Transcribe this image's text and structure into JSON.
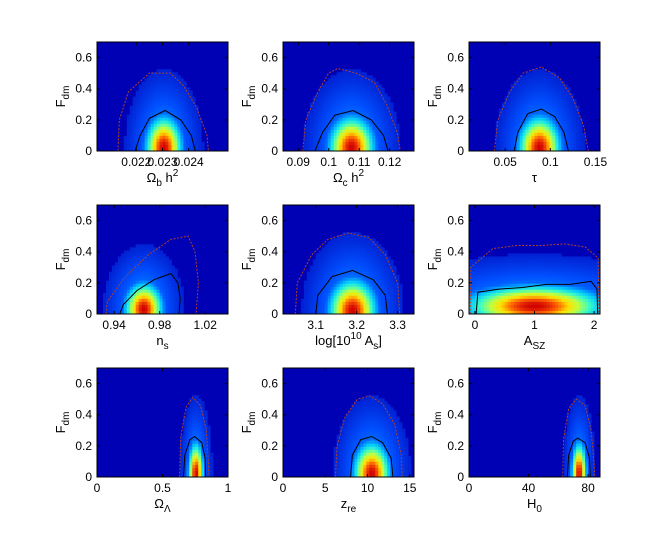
{
  "figure": {
    "shared_ylabel": {
      "main": "F",
      "sub": "dm"
    },
    "background_color": "#0000b4",
    "density_colormap": [
      "#0000b4",
      "#0050ff",
      "#00c8ff",
      "#40ffc0",
      "#c0ff40",
      "#ffe000",
      "#ff6000",
      "#d00000"
    ],
    "contour_colors": {
      "inner_68": "#000000",
      "outer_95": "#b04030"
    }
  },
  "chart_data": [
    {
      "type": "heatmap",
      "panel": "omega-b-h2",
      "xlabel": {
        "parts": [
          [
            "Ω",
            ""
          ],
          [
            "b",
            "sub"
          ],
          [
            " h",
            ""
          ],
          [
            "2",
            "sup"
          ]
        ]
      },
      "xlim": [
        0.0205,
        0.0255
      ],
      "xticks": [
        0.022,
        0.023,
        0.024
      ],
      "xticklabels": [
        "0.022",
        "0.023",
        "0.024"
      ],
      "ylim": [
        0,
        0.7
      ],
      "yticks": [
        0,
        0.2,
        0.4,
        0.6
      ],
      "yticklabels": [
        "0",
        "0.2",
        "0.4",
        "0.6"
      ],
      "peak": {
        "x": 0.02305,
        "y": 0.02,
        "sx": 0.00042,
        "sy": 0.12
      },
      "contour_68": [
        [
          0.02195,
          0
        ],
        [
          0.02215,
          0.1
        ],
        [
          0.0225,
          0.21
        ],
        [
          0.0231,
          0.26
        ],
        [
          0.0237,
          0.2
        ],
        [
          0.0241,
          0.1
        ],
        [
          0.02425,
          0
        ]
      ],
      "contour_95": [
        [
          0.0213,
          0
        ],
        [
          0.02135,
          0.2
        ],
        [
          0.0217,
          0.38
        ],
        [
          0.0225,
          0.5
        ],
        [
          0.0233,
          0.5
        ],
        [
          0.0238,
          0.42
        ],
        [
          0.0243,
          0.28
        ],
        [
          0.0247,
          0.1
        ],
        [
          0.02475,
          0
        ]
      ]
    },
    {
      "type": "heatmap",
      "panel": "omega-c-h2",
      "xlabel": {
        "parts": [
          [
            "Ω",
            ""
          ],
          [
            "c",
            "sub"
          ],
          [
            " h",
            ""
          ],
          [
            "2",
            "sup"
          ]
        ]
      },
      "xlim": [
        0.085,
        0.128
      ],
      "xticks": [
        0.09,
        0.1,
        0.11,
        0.12
      ],
      "xticklabels": [
        "0.09",
        "0.1",
        "0.11",
        "0.12"
      ],
      "ylim": [
        0,
        0.7
      ],
      "yticks": [
        0,
        0.2,
        0.4,
        0.6
      ],
      "yticklabels": [
        "0",
        "0.2",
        "0.4",
        "0.6"
      ],
      "peak": {
        "x": 0.1075,
        "y": 0.02,
        "sx": 0.0045,
        "sy": 0.12
      },
      "contour_68": [
        [
          0.0955,
          0
        ],
        [
          0.098,
          0.12
        ],
        [
          0.102,
          0.23
        ],
        [
          0.108,
          0.26
        ],
        [
          0.114,
          0.2
        ],
        [
          0.118,
          0.1
        ],
        [
          0.1195,
          0
        ]
      ],
      "contour_95": [
        [
          0.0915,
          0
        ],
        [
          0.0925,
          0.2
        ],
        [
          0.0965,
          0.38
        ],
        [
          0.1,
          0.5
        ],
        [
          0.103,
          0.53
        ],
        [
          0.109,
          0.5
        ],
        [
          0.115,
          0.44
        ],
        [
          0.119,
          0.3
        ],
        [
          0.1225,
          0.12
        ],
        [
          0.1235,
          0
        ]
      ]
    },
    {
      "type": "heatmap",
      "panel": "tau",
      "xlabel": {
        "parts": [
          [
            "τ",
            ""
          ]
        ]
      },
      "xlim": [
        0.01,
        0.155
      ],
      "xticks": [
        0.05,
        0.1,
        0.15
      ],
      "xticklabels": [
        "0.05",
        "0.1",
        "0.15"
      ],
      "ylim": [
        0,
        0.7
      ],
      "yticks": [
        0,
        0.2,
        0.4,
        0.6
      ],
      "yticklabels": [
        "0",
        "0.2",
        "0.4",
        "0.6"
      ],
      "peak": {
        "x": 0.088,
        "y": 0.02,
        "sx": 0.014,
        "sy": 0.12
      },
      "contour_68": [
        [
          0.06,
          0
        ],
        [
          0.064,
          0.12
        ],
        [
          0.075,
          0.24
        ],
        [
          0.09,
          0.27
        ],
        [
          0.105,
          0.22
        ],
        [
          0.115,
          0.12
        ],
        [
          0.12,
          0
        ]
      ],
      "contour_95": [
        [
          0.038,
          0
        ],
        [
          0.042,
          0.2
        ],
        [
          0.055,
          0.38
        ],
        [
          0.07,
          0.5
        ],
        [
          0.09,
          0.54
        ],
        [
          0.11,
          0.47
        ],
        [
          0.125,
          0.34
        ],
        [
          0.137,
          0.16
        ],
        [
          0.142,
          0
        ]
      ]
    },
    {
      "type": "heatmap",
      "panel": "n-s",
      "xlabel": {
        "parts": [
          [
            "n",
            ""
          ],
          [
            "s",
            "sub"
          ]
        ]
      },
      "xlim": [
        0.925,
        1.04
      ],
      "xticks": [
        0.94,
        0.98,
        1.02
      ],
      "xticklabels": [
        "0.94",
        "0.98",
        "1.02"
      ],
      "ylim": [
        0,
        0.7
      ],
      "yticks": [
        0,
        0.2,
        0.4,
        0.6
      ],
      "yticklabels": [
        "0",
        "0.2",
        "0.4",
        "0.6"
      ],
      "peak": {
        "x": 0.966,
        "y": 0.03,
        "sx": 0.01,
        "sy": 0.1
      },
      "contour_68": [
        [
          0.945,
          0
        ],
        [
          0.948,
          0.06
        ],
        [
          0.96,
          0.15
        ],
        [
          0.975,
          0.22
        ],
        [
          0.99,
          0.26
        ],
        [
          0.996,
          0.2
        ],
        [
          0.998,
          0.1
        ],
        [
          0.997,
          0
        ]
      ],
      "contour_95": [
        [
          0.933,
          0
        ],
        [
          0.934,
          0.08
        ],
        [
          0.95,
          0.24
        ],
        [
          0.97,
          0.38
        ],
        [
          0.99,
          0.48
        ],
        [
          1.005,
          0.5
        ],
        [
          1.011,
          0.4
        ],
        [
          1.014,
          0.2
        ],
        [
          1.012,
          0
        ]
      ]
    },
    {
      "type": "heatmap",
      "panel": "log-as",
      "xlabel": {
        "parts": [
          [
            "log[10",
            ""
          ],
          [
            "10",
            "sup"
          ],
          [
            " A",
            ""
          ],
          [
            "s",
            "sub"
          ],
          [
            "]",
            ""
          ]
        ]
      },
      "xlim": [
        3.02,
        3.34
      ],
      "xticks": [
        3.1,
        3.2,
        3.3
      ],
      "xticklabels": [
        "3.1",
        "3.2",
        "3.3"
      ],
      "ylim": [
        0,
        0.7
      ],
      "yticks": [
        0,
        0.2,
        0.4,
        0.6
      ],
      "yticklabels": [
        "0",
        "0.2",
        "0.4",
        "0.6"
      ],
      "peak": {
        "x": 3.19,
        "y": 0.02,
        "sx": 0.035,
        "sy": 0.12
      },
      "contour_68": [
        [
          3.1,
          0
        ],
        [
          3.105,
          0.12
        ],
        [
          3.14,
          0.24
        ],
        [
          3.19,
          0.28
        ],
        [
          3.24,
          0.22
        ],
        [
          3.27,
          0.12
        ],
        [
          3.275,
          0
        ]
      ],
      "contour_95": [
        [
          3.05,
          0
        ],
        [
          3.055,
          0.2
        ],
        [
          3.09,
          0.38
        ],
        [
          3.13,
          0.48
        ],
        [
          3.18,
          0.52
        ],
        [
          3.23,
          0.49
        ],
        [
          3.27,
          0.38
        ],
        [
          3.3,
          0.2
        ],
        [
          3.305,
          0
        ]
      ]
    },
    {
      "type": "heatmap",
      "panel": "a-sz",
      "xlabel": {
        "parts": [
          [
            "A",
            ""
          ],
          [
            "SZ",
            "sub"
          ]
        ]
      },
      "xlim": [
        -0.1,
        2.1
      ],
      "xticks": [
        0,
        1,
        2
      ],
      "xticklabels": [
        "0",
        "1",
        "2"
      ],
      "ylim": [
        0,
        0.7
      ],
      "yticks": [
        0,
        0.2,
        0.4,
        0.6
      ],
      "yticklabels": [
        "0",
        "0.2",
        "0.4",
        "0.6"
      ],
      "peak": {
        "x": 1.0,
        "y": 0.05,
        "sx": 0.7,
        "sy": 0.08
      },
      "contour_68": [
        [
          0.02,
          0
        ],
        [
          0.05,
          0.14
        ],
        [
          0.4,
          0.16
        ],
        [
          0.8,
          0.17
        ],
        [
          1.2,
          0.19
        ],
        [
          1.6,
          0.19
        ],
        [
          1.95,
          0.21
        ],
        [
          2.05,
          0.16
        ],
        [
          2.06,
          0
        ]
      ],
      "contour_95": [
        [
          -0.08,
          0
        ],
        [
          -0.07,
          0.3
        ],
        [
          0.3,
          0.42
        ],
        [
          0.7,
          0.44
        ],
        [
          1.1,
          0.44
        ],
        [
          1.5,
          0.45
        ],
        [
          1.85,
          0.43
        ],
        [
          2.07,
          0.36
        ],
        [
          2.08,
          0
        ]
      ]
    },
    {
      "type": "heatmap",
      "panel": "omega-lambda",
      "xlabel": {
        "parts": [
          [
            "Ω",
            ""
          ],
          [
            "Λ",
            "sub"
          ]
        ]
      },
      "xlim": [
        0,
        1
      ],
      "xticks": [
        0,
        0.5,
        1
      ],
      "xticklabels": [
        "0",
        "0.5",
        "1"
      ],
      "ylim": [
        0,
        0.7
      ],
      "yticks": [
        0,
        0.2,
        0.4,
        0.6
      ],
      "yticklabels": [
        "0",
        "0.2",
        "0.4",
        "0.6"
      ],
      "peak": {
        "x": 0.755,
        "y": 0.02,
        "sx": 0.035,
        "sy": 0.12
      },
      "contour_68": [
        [
          0.66,
          0
        ],
        [
          0.67,
          0.14
        ],
        [
          0.71,
          0.24
        ],
        [
          0.745,
          0.26
        ],
        [
          0.8,
          0.22
        ],
        [
          0.825,
          0.12
        ],
        [
          0.83,
          0
        ]
      ],
      "contour_95": [
        [
          0.63,
          0
        ],
        [
          0.64,
          0.26
        ],
        [
          0.68,
          0.45
        ],
        [
          0.73,
          0.51
        ],
        [
          0.79,
          0.46
        ],
        [
          0.835,
          0.3
        ],
        [
          0.85,
          0.1
        ],
        [
          0.855,
          0
        ]
      ]
    },
    {
      "type": "heatmap",
      "panel": "z-re",
      "xlabel": {
        "parts": [
          [
            "z",
            ""
          ],
          [
            "re",
            "sub"
          ]
        ]
      },
      "xlim": [
        0,
        15.5
      ],
      "xticks": [
        0,
        5,
        10,
        15
      ],
      "xticklabels": [
        "0",
        "5",
        "10",
        "15"
      ],
      "ylim": [
        0,
        0.7
      ],
      "yticks": [
        0,
        0.2,
        0.4,
        0.6
      ],
      "yticklabels": [
        "0",
        "0.2",
        "0.4",
        "0.6"
      ],
      "peak": {
        "x": 10.5,
        "y": 0.02,
        "sx": 1.3,
        "sy": 0.12
      },
      "contour_68": [
        [
          8.0,
          0
        ],
        [
          8.2,
          0.14
        ],
        [
          9.2,
          0.24
        ],
        [
          10.5,
          0.26
        ],
        [
          11.8,
          0.22
        ],
        [
          12.8,
          0.12
        ],
        [
          13.0,
          0
        ]
      ],
      "contour_95": [
        [
          6.2,
          0
        ],
        [
          6.4,
          0.2
        ],
        [
          7.3,
          0.38
        ],
        [
          8.8,
          0.5
        ],
        [
          10.3,
          0.52
        ],
        [
          11.8,
          0.47
        ],
        [
          13.2,
          0.34
        ],
        [
          14.0,
          0.14
        ],
        [
          14.1,
          0
        ]
      ]
    },
    {
      "type": "heatmap",
      "panel": "h0",
      "xlabel": {
        "parts": [
          [
            "H",
            ""
          ],
          [
            "0",
            "sub"
          ]
        ]
      },
      "xlim": [
        0,
        88
      ],
      "xticks": [
        0,
        40,
        80
      ],
      "xticklabels": [
        "0",
        "40",
        "80"
      ],
      "ylim": [
        0,
        0.7
      ],
      "yticks": [
        0,
        0.2,
        0.4,
        0.6
      ],
      "yticklabels": [
        "0",
        "0.2",
        "0.4",
        "0.6"
      ],
      "peak": {
        "x": 74,
        "y": 0.02,
        "sx": 3.0,
        "sy": 0.12
      },
      "contour_68": [
        [
          66,
          0
        ],
        [
          67,
          0.14
        ],
        [
          70,
          0.23
        ],
        [
          73,
          0.25
        ],
        [
          78,
          0.22
        ],
        [
          81,
          0.12
        ],
        [
          81.5,
          0
        ]
      ],
      "contour_95": [
        [
          63,
          0
        ],
        [
          63.5,
          0.24
        ],
        [
          67,
          0.44
        ],
        [
          72,
          0.5
        ],
        [
          78,
          0.46
        ],
        [
          82,
          0.3
        ],
        [
          84,
          0.1
        ],
        [
          84.5,
          0
        ]
      ]
    }
  ]
}
